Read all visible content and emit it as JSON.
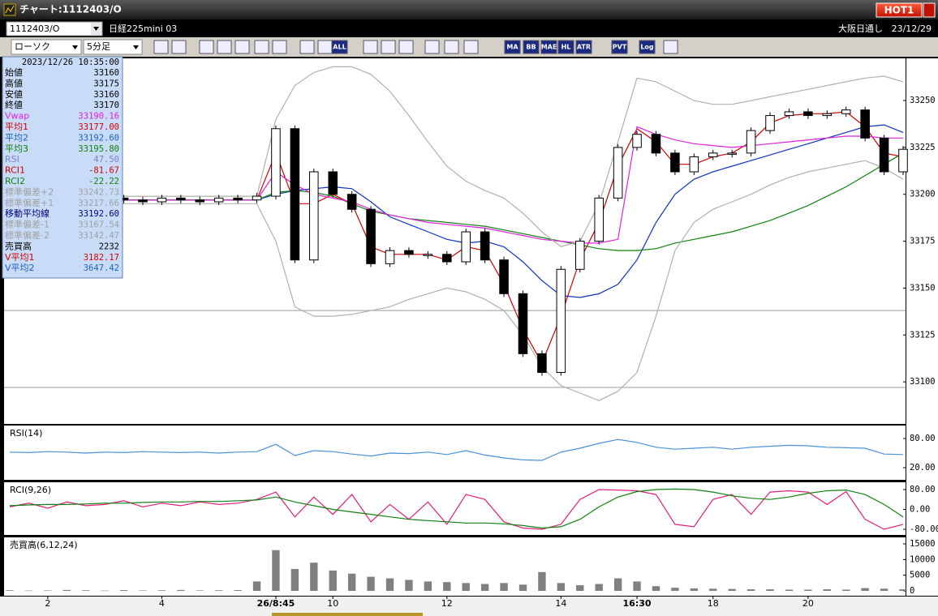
{
  "window": {
    "title": "チャート:1112403/O",
    "hot": "HOT1"
  },
  "header": {
    "symbol": "1112403/O",
    "name": "日経225mini 03",
    "session": "大阪日通し",
    "date": "23/12/29"
  },
  "toolbar": {
    "chart_type": "ローソク",
    "interval": "5分足",
    "icons": [
      "ALL",
      "MA",
      "BB",
      "MAE",
      "HL",
      "ATR",
      "PVT",
      "Log"
    ]
  },
  "info_panel": {
    "timestamp": "2023/12/26  10:35:00",
    "rows": [
      {
        "label": "始値",
        "value": "33160",
        "color": "#000000"
      },
      {
        "label": "高値",
        "value": "33175",
        "color": "#000000"
      },
      {
        "label": "安値",
        "value": "33160",
        "color": "#000000"
      },
      {
        "label": "終値",
        "value": "33170",
        "color": "#000000"
      },
      {
        "label": "Vwap",
        "value": "33190.16",
        "color": "#e020e0"
      },
      {
        "label": "平均1",
        "value": "33177.00",
        "color": "#d00000"
      },
      {
        "label": "平均2",
        "value": "33192.60",
        "color": "#2060c0"
      },
      {
        "label": "平均3",
        "value": "33195.80",
        "color": "#108010"
      },
      {
        "label": "RSI",
        "value": "47.50",
        "color": "#8080c0"
      },
      {
        "label": "RCI1",
        "value": "-81.67",
        "color": "#d00000"
      },
      {
        "label": "RCI2",
        "value": "-22.22",
        "color": "#108010"
      },
      {
        "label": "標準偏差+2",
        "value": "33242.73",
        "color": "#a0a0a0"
      },
      {
        "label": "標準偏差+1",
        "value": "33217.66",
        "color": "#a0a0a0"
      },
      {
        "label": "移動平均線",
        "value": "33192.60",
        "color": "#000080"
      },
      {
        "label": "標準偏差-1",
        "value": "33167.54",
        "color": "#a0a0a0"
      },
      {
        "label": "標準偏差-2",
        "value": "33142.47",
        "color": "#a0a0a0"
      },
      {
        "label": "売買高",
        "value": "2232",
        "color": "#000000"
      },
      {
        "label": "V平均1",
        "value": "3182.17",
        "color": "#d00000"
      },
      {
        "label": "V平均2",
        "value": "3647.42",
        "color": "#2060c0"
      }
    ]
  },
  "chart_data": [
    {
      "type": "candlestick",
      "categories": [
        null,
        null,
        "2",
        null,
        null,
        null,
        null,
        null,
        "4",
        null,
        null,
        null,
        null,
        null,
        "26/8:45",
        null,
        null,
        "10",
        null,
        null,
        null,
        null,
        null,
        "12",
        null,
        null,
        null,
        null,
        null,
        "14",
        null,
        null,
        null,
        "16:30",
        null,
        null,
        null,
        "18",
        null,
        null,
        null,
        null,
        "20",
        null,
        null,
        null,
        null,
        null
      ],
      "values": [
        33197,
        33196,
        33198,
        33197,
        33196,
        33198,
        33197,
        33196,
        33198,
        33197,
        33196,
        33198,
        33197,
        33199,
        33235,
        33165,
        33212,
        33200,
        33192,
        33163,
        33170,
        33168,
        33168,
        33164,
        33180,
        33165,
        33147,
        33115,
        33105,
        33160,
        33175,
        33198,
        33225,
        33232,
        33222,
        33212,
        33220,
        33222,
        33222,
        33234,
        33242,
        33244,
        33242,
        33243,
        33245,
        33230,
        33212,
        33224
      ],
      "series": [
        {
          "name": "平均1",
          "color": "#d00000",
          "values": [
            33197,
            33197,
            33197,
            33197,
            33197,
            33197,
            33197,
            33197,
            33197,
            33197,
            33197,
            33197,
            33197,
            33197,
            33222,
            33195,
            33195,
            33200,
            33195,
            33172,
            33168,
            33168,
            33168,
            33165,
            33172,
            33170,
            33152,
            33128,
            33110,
            33135,
            33165,
            33185,
            33215,
            33235,
            33228,
            33216,
            33216,
            33220,
            33222,
            33228,
            33238,
            33242,
            33243,
            33243,
            33244,
            33236,
            33222,
            33220
          ]
        },
        {
          "name": "平均2",
          "color": "#1030c0",
          "values": [
            33197,
            33197,
            33197,
            33197,
            33197,
            33197,
            33197,
            33197,
            33197,
            33197,
            33197,
            33197,
            33197,
            33197,
            33200,
            33202,
            33203,
            33204,
            33203,
            33196,
            33188,
            33184,
            33180,
            33176,
            33174,
            33175,
            33172,
            33164,
            33154,
            33146,
            33145,
            33147,
            33152,
            33165,
            33185,
            33200,
            33208,
            33212,
            33215,
            33218,
            33221,
            33224,
            33227,
            33230,
            33233,
            33236,
            33237,
            33233
          ]
        },
        {
          "name": "平均3",
          "color": "#108010",
          "values": [
            33197,
            33197,
            33197,
            33197,
            33197,
            33197,
            33197,
            33197,
            33197,
            33197,
            33197,
            33197,
            33197,
            33197,
            33201,
            33202,
            33201,
            33199,
            33195,
            33191,
            33189,
            33187,
            33186,
            33185,
            33184,
            33183,
            33181,
            33179,
            33177,
            33175,
            33173,
            33171,
            33170,
            33170,
            33171,
            33174,
            33176,
            33178,
            33180,
            33183,
            33186,
            33190,
            33194,
            33199,
            33204,
            33210,
            33216,
            33222
          ]
        },
        {
          "name": "移動平均線",
          "color": "#e020e0",
          "values": [
            33197,
            33197,
            33197,
            33197,
            33197,
            33197,
            33197,
            33197,
            33197,
            33197,
            33197,
            33197,
            33197,
            33197,
            33212,
            33205,
            33200,
            33198,
            33196,
            33192,
            33189,
            33187,
            33185,
            33184,
            33183,
            33182,
            33180,
            33178,
            33176,
            33175,
            33174,
            33174,
            33176,
            33236,
            33232,
            33229,
            33227,
            33226,
            33225,
            33226,
            33227,
            33228,
            33229,
            33230,
            33231,
            33231,
            33230,
            33230
          ]
        },
        {
          "name": "標準偏差+2",
          "color": "#b0b0b0",
          "values": [
            33199,
            33199,
            33199,
            33199,
            33199,
            33199,
            33199,
            33199,
            33199,
            33199,
            33199,
            33199,
            33199,
            33199,
            33240,
            33258,
            33265,
            33268,
            33268,
            33264,
            33255,
            33242,
            33228,
            33215,
            33207,
            33202,
            33198,
            33190,
            33180,
            33172,
            33175,
            33195,
            33228,
            33262,
            33260,
            33255,
            33250,
            33248,
            33248,
            33250,
            33252,
            33254,
            33256,
            33258,
            33260,
            33262,
            33263,
            33260
          ]
        },
        {
          "name": "標準偏差-2",
          "color": "#b0b0b0",
          "values": [
            33195,
            33195,
            33195,
            33195,
            33195,
            33195,
            33195,
            33195,
            33195,
            33195,
            33195,
            33195,
            33195,
            33195,
            33175,
            33140,
            33135,
            33135,
            33136,
            33138,
            33140,
            33144,
            33147,
            33150,
            33148,
            33144,
            33138,
            33125,
            33108,
            33098,
            33094,
            33090,
            33095,
            33105,
            33135,
            33170,
            33185,
            33192,
            33196,
            33200,
            33205,
            33209,
            33212,
            33214,
            33216,
            33218,
            33214,
            33208
          ]
        }
      ],
      "reference_lines": [
        33138,
        33097
      ],
      "ylim": [
        33078,
        33272.5
      ],
      "yticks": [
        33100,
        33125,
        33150,
        33175,
        33200,
        33225,
        33250
      ]
    },
    {
      "type": "line",
      "title": "RSI(14)",
      "series": [
        {
          "name": "RSI",
          "color": "#4a90d9",
          "values": [
            52,
            51,
            53,
            52,
            50,
            52,
            51,
            53,
            52,
            51,
            52,
            50,
            52,
            53,
            68,
            45,
            55,
            53,
            48,
            44,
            50,
            49,
            52,
            47,
            55,
            46,
            40,
            36,
            35,
            52,
            60,
            70,
            78,
            72,
            62,
            58,
            60,
            62,
            58,
            62,
            64,
            66,
            65,
            62,
            61,
            60,
            48,
            47
          ]
        }
      ],
      "ylim": [
        -5,
        106.7
      ],
      "yticks": [
        {
          "value": 20,
          "label": "20.00"
        },
        {
          "value": 80,
          "label": "80.00"
        }
      ]
    },
    {
      "type": "line",
      "title": "RCI(9,26)",
      "series": [
        {
          "name": "RCI1",
          "color": "#e0207a",
          "values": [
            10,
            25,
            5,
            30,
            15,
            20,
            35,
            10,
            25,
            15,
            30,
            20,
            25,
            40,
            70,
            -30,
            50,
            -20,
            60,
            -50,
            20,
            -40,
            30,
            -60,
            60,
            40,
            -50,
            -75,
            -80,
            -60,
            40,
            80,
            78,
            75,
            60,
            -60,
            -70,
            40,
            60,
            -20,
            70,
            75,
            70,
            20,
            72,
            -40,
            -80,
            -60
          ]
        },
        {
          "name": "RCI2",
          "color": "#108010",
          "values": [
            15,
            18,
            20,
            20,
            22,
            25,
            25,
            28,
            30,
            30,
            32,
            32,
            35,
            38,
            50,
            30,
            15,
            0,
            -10,
            -20,
            -30,
            -40,
            -45,
            -50,
            -55,
            -55,
            -58,
            -65,
            -75,
            -70,
            -40,
            10,
            50,
            72,
            80,
            82,
            80,
            70,
            55,
            45,
            40,
            50,
            65,
            75,
            78,
            60,
            20,
            -30
          ]
        }
      ],
      "ylim": [
        -102.9,
        109.4
      ],
      "yticks": [
        {
          "value": -80,
          "label": "-80.00"
        },
        {
          "value": 0,
          "label": "0.00"
        },
        {
          "value": 80,
          "label": "80.00"
        }
      ]
    },
    {
      "type": "bar",
      "title": "売買高(6,12,24)",
      "color": "#808080",
      "values": [
        200,
        100,
        150,
        300,
        200,
        100,
        250,
        150,
        200,
        300,
        150,
        200,
        250,
        3000,
        13000,
        7000,
        9000,
        6500,
        5500,
        4500,
        4000,
        3500,
        3000,
        2800,
        2500,
        2200,
        2500,
        2000,
        6000,
        2500,
        1800,
        2200,
        4000,
        3000,
        1500,
        1000,
        800,
        700,
        600,
        500,
        500,
        400,
        400,
        500,
        400,
        900,
        700,
        500
      ],
      "ylim": [
        -1552,
        17069
      ],
      "yticks": [
        0,
        5000,
        10000,
        15000
      ]
    }
  ]
}
